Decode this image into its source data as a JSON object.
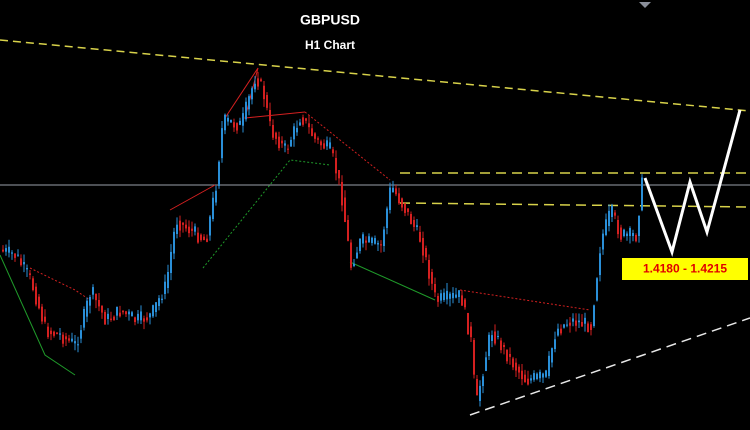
{
  "title": "GBPUSD",
  "subtitle": "H1 Chart",
  "annotation": "1.4180 - 1.4215"
}
